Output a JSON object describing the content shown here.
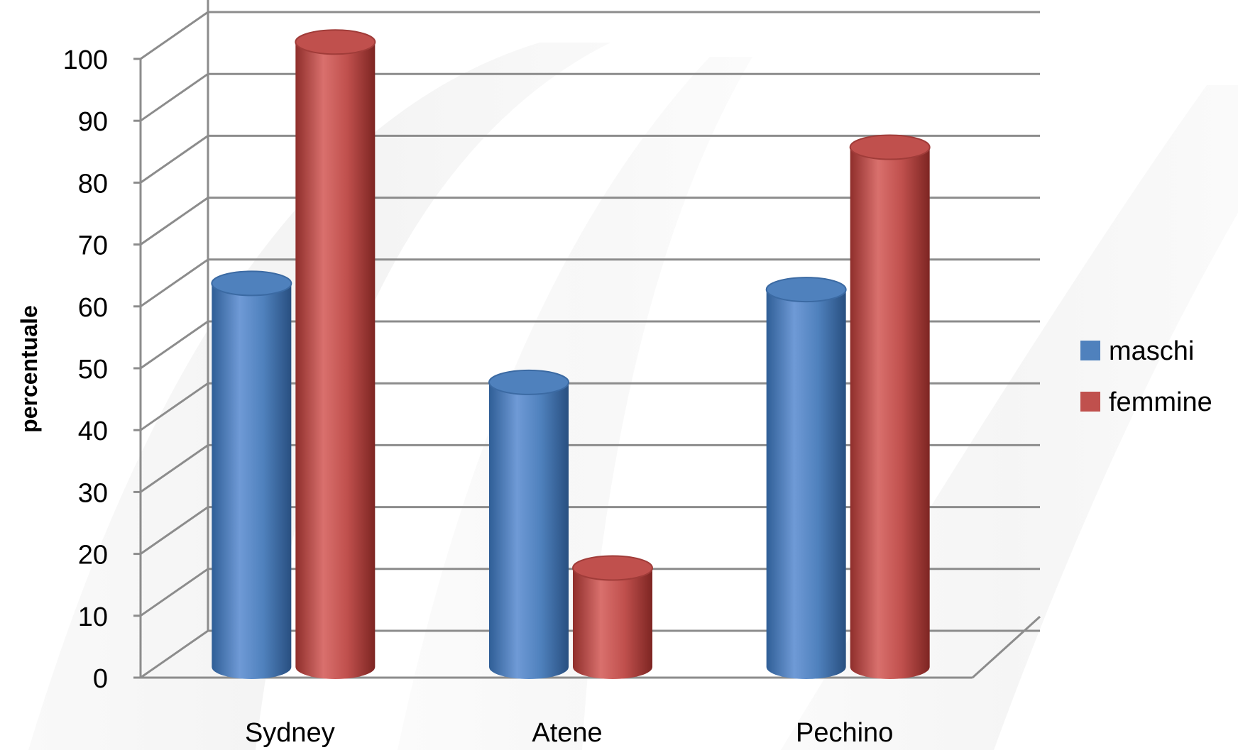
{
  "chart_data": {
    "type": "bar",
    "categories": [
      "Sydney",
      "Atene",
      "Pechino"
    ],
    "series": [
      {
        "name": "maschi",
        "values": [
          62,
          46,
          61
        ],
        "color": "#4F81BD"
      },
      {
        "name": "femmine",
        "values": [
          101,
          16,
          84
        ],
        "color": "#C0504D"
      }
    ],
    "ylabel": "percentuale",
    "xlabel": "",
    "ylim": [
      0,
      100
    ],
    "yticks": [
      0,
      10,
      20,
      30,
      40,
      50,
      60,
      70,
      80,
      90,
      100
    ],
    "grid": true,
    "legend_position": "right",
    "style": "3d-cylinder"
  }
}
